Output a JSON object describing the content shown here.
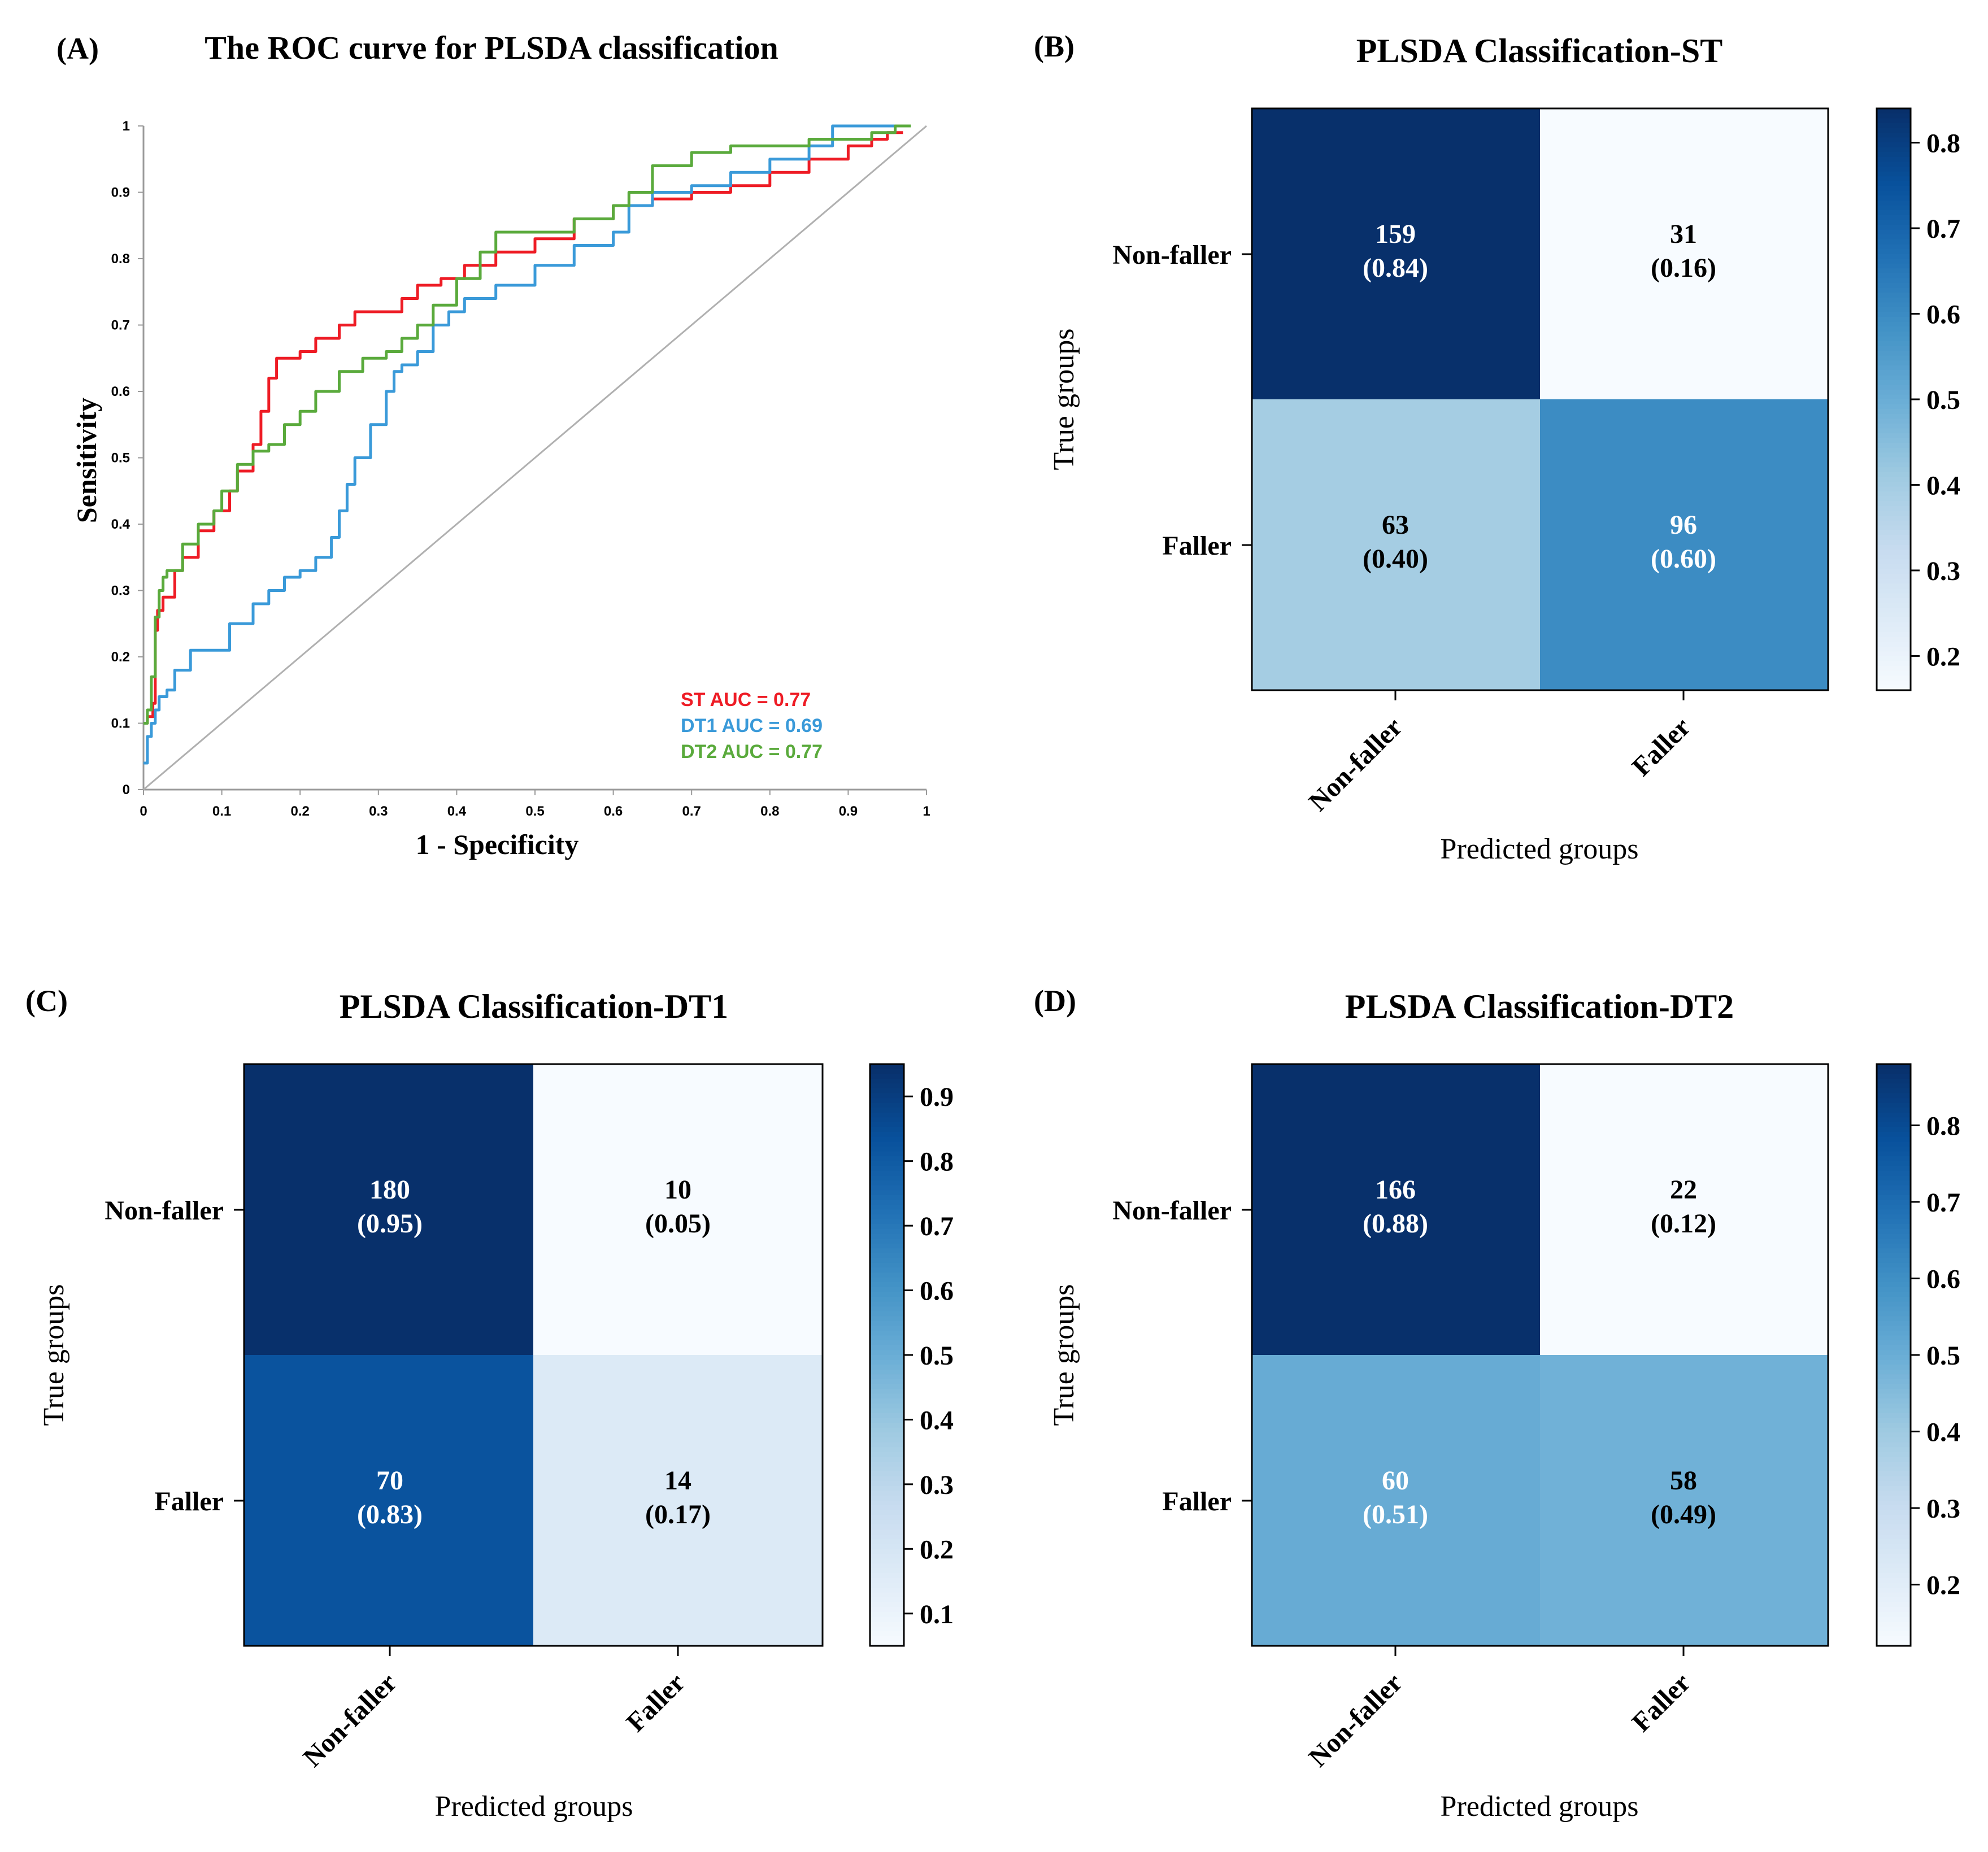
{
  "chart_data": [
    {
      "panel": "(A)",
      "type": "line",
      "title": "The ROC curve for PLSDA classification",
      "xlabel": "1 - Specificity",
      "ylabel": "Sensitivity",
      "xlim": [
        0,
        1
      ],
      "ylim": [
        0,
        1
      ],
      "xticks": [
        "0",
        "0.1",
        "0.2",
        "0.3",
        "0.4",
        "0.5",
        "0.6",
        "0.7",
        "0.8",
        "0.9",
        "1"
      ],
      "yticks": [
        "0",
        "0.1",
        "0.2",
        "0.3",
        "0.4",
        "0.5",
        "0.6",
        "0.7",
        "0.8",
        "0.9",
        "1"
      ],
      "reference_line": {
        "x": [
          0,
          1
        ],
        "y": [
          0,
          1
        ],
        "color": "#b0b0b0"
      },
      "legend_position": "bottom-right",
      "series": [
        {
          "name": "ST",
          "label": "ST AUC = 0.77",
          "color": "#ee1c25",
          "x": [
            0,
            0.005,
            0.012,
            0.015,
            0.018,
            0.022,
            0.025,
            0.04,
            0.05,
            0.07,
            0.09,
            0.11,
            0.12,
            0.14,
            0.15,
            0.16,
            0.17,
            0.18,
            0.2,
            0.22,
            0.25,
            0.27,
            0.3,
            0.33,
            0.35,
            0.38,
            0.41,
            0.45,
            0.5,
            0.55,
            0.6,
            0.65,
            0.7,
            0.75,
            0.8,
            0.85,
            0.9,
            0.93,
            0.95
          ],
          "y": [
            0.1,
            0.11,
            0.13,
            0.24,
            0.27,
            0.27,
            0.29,
            0.33,
            0.35,
            0.39,
            0.42,
            0.45,
            0.48,
            0.52,
            0.57,
            0.62,
            0.65,
            0.65,
            0.66,
            0.68,
            0.7,
            0.72,
            0.72,
            0.74,
            0.76,
            0.77,
            0.79,
            0.81,
            0.83,
            0.86,
            0.88,
            0.89,
            0.9,
            0.91,
            0.93,
            0.95,
            0.97,
            0.98,
            0.99
          ]
        },
        {
          "name": "DT1",
          "label": "DT1 AUC = 0.69",
          "color": "#3a9ad9",
          "x": [
            0,
            0.005,
            0.01,
            0.015,
            0.02,
            0.03,
            0.04,
            0.06,
            0.1,
            0.11,
            0.14,
            0.16,
            0.18,
            0.2,
            0.22,
            0.24,
            0.25,
            0.26,
            0.27,
            0.29,
            0.31,
            0.32,
            0.33,
            0.35,
            0.37,
            0.39,
            0.41,
            0.45,
            0.5,
            0.55,
            0.6,
            0.62,
            0.65,
            0.7,
            0.75,
            0.8,
            0.85,
            0.88,
            0.9,
            0.95
          ],
          "y": [
            0.04,
            0.08,
            0.1,
            0.12,
            0.14,
            0.15,
            0.18,
            0.21,
            0.21,
            0.25,
            0.28,
            0.3,
            0.32,
            0.33,
            0.35,
            0.38,
            0.42,
            0.46,
            0.5,
            0.55,
            0.6,
            0.63,
            0.64,
            0.66,
            0.7,
            0.72,
            0.74,
            0.76,
            0.79,
            0.82,
            0.84,
            0.88,
            0.9,
            0.91,
            0.93,
            0.95,
            0.97,
            1.0,
            1.0,
            1.0
          ]
        },
        {
          "name": "DT2",
          "label": "DT2 AUC = 0.77",
          "color": "#5aaa3c",
          "x": [
            0,
            0.005,
            0.01,
            0.015,
            0.02,
            0.025,
            0.03,
            0.05,
            0.07,
            0.09,
            0.1,
            0.12,
            0.14,
            0.16,
            0.18,
            0.2,
            0.22,
            0.25,
            0.28,
            0.31,
            0.33,
            0.35,
            0.37,
            0.4,
            0.43,
            0.45,
            0.5,
            0.55,
            0.6,
            0.62,
            0.65,
            0.7,
            0.75,
            0.8,
            0.85,
            0.9,
            0.93,
            0.96
          ],
          "y": [
            0.1,
            0.12,
            0.17,
            0.26,
            0.3,
            0.32,
            0.33,
            0.37,
            0.4,
            0.42,
            0.45,
            0.49,
            0.51,
            0.52,
            0.55,
            0.57,
            0.6,
            0.63,
            0.65,
            0.66,
            0.68,
            0.7,
            0.73,
            0.77,
            0.81,
            0.84,
            0.84,
            0.86,
            0.88,
            0.9,
            0.94,
            0.96,
            0.97,
            0.97,
            0.98,
            0.98,
            0.99,
            1.0
          ]
        }
      ]
    },
    {
      "panel": "(B)",
      "type": "heatmap",
      "title": "PLSDA Classification-ST",
      "xlabel": "Predicted groups",
      "ylabel": "True groups",
      "row_labels": [
        "Non-faller",
        "Faller"
      ],
      "col_labels": [
        "Non-faller",
        "Faller"
      ],
      "counts": [
        [
          159,
          31
        ],
        [
          63,
          96
        ]
      ],
      "proportions": [
        [
          0.84,
          0.16
        ],
        [
          0.4,
          0.6
        ]
      ],
      "cell_labels": [
        [
          "159",
          "31"
        ],
        [
          "63",
          "96"
        ]
      ],
      "prop_labels": [
        [
          "(0.84)",
          "(0.16)"
        ],
        [
          "(0.40)",
          "(0.60)"
        ]
      ],
      "colorbar_range": [
        0.16,
        0.84
      ],
      "colorbar_ticks": [
        0.2,
        0.3,
        0.4,
        0.5,
        0.6,
        0.7,
        0.8
      ],
      "colorbar_tick_labels": [
        "0.2",
        "0.3",
        "0.4",
        "0.5",
        "0.6",
        "0.7",
        "0.8"
      ]
    },
    {
      "panel": "(C)",
      "type": "heatmap",
      "title": "PLSDA Classification-DT1",
      "xlabel": "Predicted groups",
      "ylabel": "True groups",
      "row_labels": [
        "Non-faller",
        "Faller"
      ],
      "col_labels": [
        "Non-faller",
        "Faller"
      ],
      "counts": [
        [
          180,
          10
        ],
        [
          70,
          14
        ]
      ],
      "proportions": [
        [
          0.95,
          0.05
        ],
        [
          0.83,
          0.17
        ]
      ],
      "cell_labels": [
        [
          "180",
          "10"
        ],
        [
          "70",
          "14"
        ]
      ],
      "prop_labels": [
        [
          "(0.95)",
          "(0.05)"
        ],
        [
          "(0.83)",
          "(0.17)"
        ]
      ],
      "colorbar_range": [
        0.05,
        0.95
      ],
      "colorbar_ticks": [
        0.1,
        0.2,
        0.3,
        0.4,
        0.5,
        0.6,
        0.7,
        0.8,
        0.9
      ],
      "colorbar_tick_labels": [
        "0.1",
        "0.2",
        "0.3",
        "0.4",
        "0.5",
        "0.6",
        "0.7",
        "0.8",
        "0.9"
      ]
    },
    {
      "panel": "(D)",
      "type": "heatmap",
      "title": "PLSDA Classification-DT2",
      "xlabel": "Predicted groups",
      "ylabel": "True groups",
      "row_labels": [
        "Non-faller",
        "Faller"
      ],
      "col_labels": [
        "Non-faller",
        "Faller"
      ],
      "counts": [
        [
          166,
          22
        ],
        [
          60,
          58
        ]
      ],
      "proportions": [
        [
          0.88,
          0.12
        ],
        [
          0.51,
          0.49
        ]
      ],
      "cell_labels": [
        [
          "166",
          "22"
        ],
        [
          "60",
          "58"
        ]
      ],
      "prop_labels": [
        [
          "(0.88)",
          "(0.12)"
        ],
        [
          "(0.51)",
          "(0.49)"
        ]
      ],
      "colorbar_range": [
        0.12,
        0.88
      ],
      "colorbar_ticks": [
        0.2,
        0.3,
        0.4,
        0.5,
        0.6,
        0.7,
        0.8
      ],
      "colorbar_tick_labels": [
        "0.2",
        "0.3",
        "0.4",
        "0.5",
        "0.6",
        "0.7",
        "0.8"
      ]
    }
  ]
}
